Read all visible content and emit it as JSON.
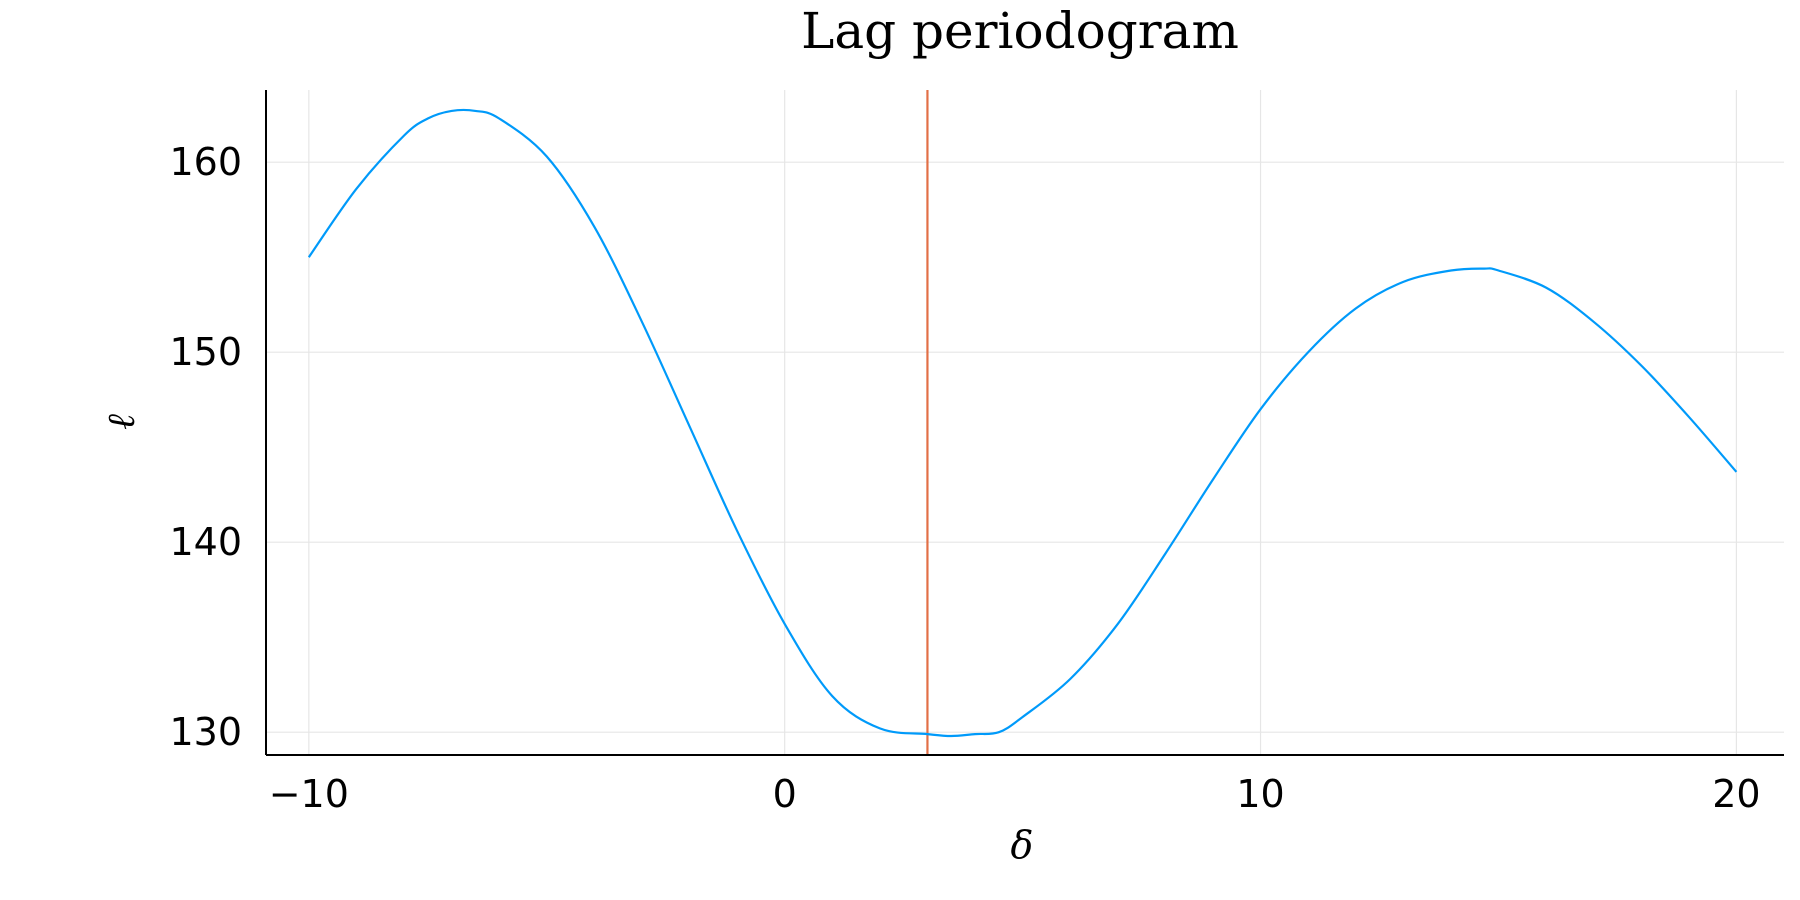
{
  "chart_data": {
    "type": "line",
    "title": "Lag periodogram",
    "xlabel": "δ",
    "ylabel": "ℓ",
    "xlim": [
      -10.9,
      21
    ],
    "ylim": [
      128.8,
      163.8
    ],
    "xticks": [
      -10,
      0,
      10,
      20
    ],
    "xtick_labels": [
      "−10",
      "0",
      "10",
      "20"
    ],
    "yticks": [
      130,
      140,
      150,
      160
    ],
    "ytick_labels": [
      "130",
      "140",
      "150",
      "160"
    ],
    "grid": true,
    "legend": "none",
    "series": [
      {
        "color": "#009AFA",
        "x": [
          -10,
          -9,
          -8,
          -7.5,
          -7,
          -6.5,
          -6,
          -5,
          -4,
          -3,
          -2,
          -1,
          0,
          1,
          2,
          3,
          3.5,
          4,
          4.5,
          5,
          6,
          7,
          8,
          9,
          10,
          11,
          12,
          13,
          14,
          14.7,
          15,
          16,
          17,
          18,
          19,
          20
        ],
        "y": [
          155.0,
          158.6,
          161.4,
          162.3,
          162.7,
          162.7,
          162.3,
          160.3,
          156.6,
          151.6,
          146.1,
          140.6,
          135.7,
          131.9,
          130.2,
          129.9,
          129.8,
          129.9,
          130.0,
          130.8,
          132.8,
          135.7,
          139.4,
          143.3,
          147.0,
          150.0,
          152.3,
          153.7,
          154.3,
          154.4,
          154.3,
          153.4,
          151.6,
          149.3,
          146.6,
          143.7
        ]
      }
    ],
    "vlines": [
      {
        "x": 3,
        "color": "#E26F46"
      }
    ]
  }
}
